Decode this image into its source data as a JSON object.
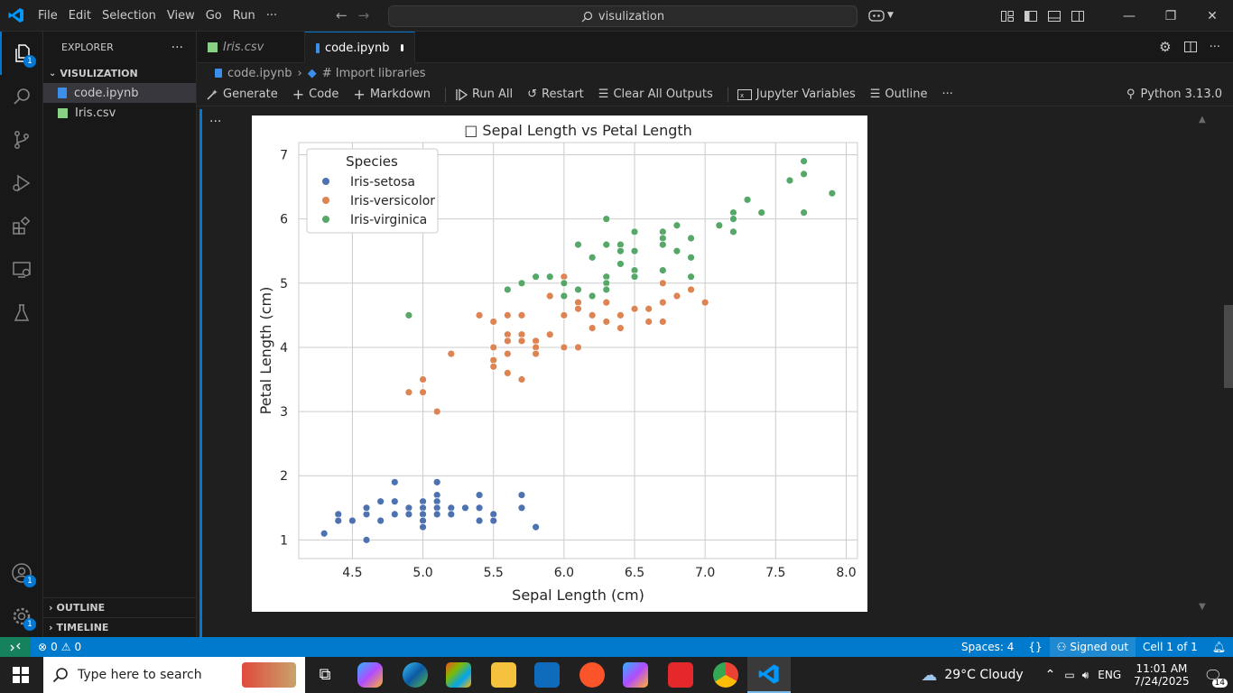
{
  "titlebar": {
    "menu": [
      "File",
      "Edit",
      "Selection",
      "View",
      "Go",
      "Run",
      "···"
    ],
    "search": "visulization"
  },
  "activity": {
    "explorer_badge": "1",
    "accounts_badge": "1",
    "settings_badge": "1"
  },
  "sidebar": {
    "header": "EXPLORER",
    "more": "···",
    "folder": "VISULIZATION",
    "files": [
      {
        "name": "code.ipynb",
        "icon": "notebook-icon"
      },
      {
        "name": "Iris.csv",
        "icon": "csv-icon"
      }
    ],
    "outline": "OUTLINE",
    "timeline": "TIMELINE"
  },
  "tabs": [
    {
      "label": "Iris.csv",
      "active": false
    },
    {
      "label": "code.ipynb",
      "active": true
    }
  ],
  "breadcrumb": {
    "file": "code.ipynb",
    "section": "# Import libraries"
  },
  "toolbar": {
    "generate": "Generate",
    "code": "Code",
    "markdown": "Markdown",
    "run_all": "Run All",
    "restart": "Restart",
    "clear": "Clear All Outputs",
    "variables": "Jupyter Variables",
    "outline": "Outline",
    "more": "···",
    "kernel": "Python 3.13.0"
  },
  "cell": {
    "more": "···"
  },
  "chart_data": {
    "type": "scatter",
    "title": "□ Sepal Length vs Petal Length",
    "xlabel": "Sepal Length (cm)",
    "ylabel": "Petal Length (cm)",
    "xlim": [
      4.12,
      8.08
    ],
    "ylim": [
      0.71,
      7.19
    ],
    "xticks": [
      "4.5",
      "5.0",
      "5.5",
      "6.0",
      "6.5",
      "7.0",
      "7.5",
      "8.0"
    ],
    "yticks": [
      "1",
      "2",
      "3",
      "4",
      "5",
      "6",
      "7"
    ],
    "grid": true,
    "legend": {
      "title": "Species",
      "placement": "top-left"
    },
    "series": [
      {
        "name": "Iris-setosa",
        "color": "#4c72b0",
        "points": [
          [
            4.3,
            1.1
          ],
          [
            4.4,
            1.4
          ],
          [
            4.4,
            1.3
          ],
          [
            4.5,
            1.3
          ],
          [
            4.6,
            1.0
          ],
          [
            4.6,
            1.4
          ],
          [
            4.6,
            1.5
          ],
          [
            4.7,
            1.6
          ],
          [
            4.7,
            1.3
          ],
          [
            4.8,
            1.9
          ],
          [
            4.8,
            1.6
          ],
          [
            4.8,
            1.4
          ],
          [
            4.9,
            1.5
          ],
          [
            4.9,
            1.4
          ],
          [
            5.0,
            1.6
          ],
          [
            5.0,
            1.5
          ],
          [
            5.0,
            1.4
          ],
          [
            5.0,
            1.3
          ],
          [
            5.0,
            1.2
          ],
          [
            5.1,
            1.9
          ],
          [
            5.1,
            1.7
          ],
          [
            5.1,
            1.6
          ],
          [
            5.1,
            1.5
          ],
          [
            5.1,
            1.4
          ],
          [
            5.2,
            1.5
          ],
          [
            5.2,
            1.4
          ],
          [
            5.3,
            1.5
          ],
          [
            5.4,
            1.7
          ],
          [
            5.4,
            1.5
          ],
          [
            5.4,
            1.3
          ],
          [
            5.5,
            1.4
          ],
          [
            5.5,
            1.3
          ],
          [
            5.7,
            1.7
          ],
          [
            5.7,
            1.5
          ],
          [
            5.8,
            1.2
          ]
        ]
      },
      {
        "name": "Iris-versicolor",
        "color": "#dd8452",
        "points": [
          [
            4.9,
            3.3
          ],
          [
            5.0,
            3.5
          ],
          [
            5.0,
            3.3
          ],
          [
            5.1,
            3.0
          ],
          [
            5.2,
            3.9
          ],
          [
            5.4,
            4.5
          ],
          [
            5.5,
            4.4
          ],
          [
            5.5,
            4.0
          ],
          [
            5.5,
            3.8
          ],
          [
            5.5,
            3.7
          ],
          [
            5.6,
            4.5
          ],
          [
            5.6,
            4.2
          ],
          [
            5.6,
            4.1
          ],
          [
            5.6,
            3.9
          ],
          [
            5.6,
            3.6
          ],
          [
            5.7,
            4.5
          ],
          [
            5.7,
            4.2
          ],
          [
            5.7,
            4.1
          ],
          [
            5.7,
            3.5
          ],
          [
            5.8,
            4.1
          ],
          [
            5.8,
            4.0
          ],
          [
            5.8,
            3.9
          ],
          [
            5.9,
            4.8
          ],
          [
            5.9,
            4.2
          ],
          [
            6.0,
            5.1
          ],
          [
            6.0,
            4.5
          ],
          [
            6.0,
            4.0
          ],
          [
            6.1,
            4.7
          ],
          [
            6.1,
            4.6
          ],
          [
            6.1,
            4.0
          ],
          [
            6.2,
            4.5
          ],
          [
            6.2,
            4.3
          ],
          [
            6.3,
            4.9
          ],
          [
            6.3,
            4.7
          ],
          [
            6.3,
            4.4
          ],
          [
            6.4,
            4.5
          ],
          [
            6.4,
            4.3
          ],
          [
            6.5,
            4.6
          ],
          [
            6.6,
            4.6
          ],
          [
            6.6,
            4.4
          ],
          [
            6.7,
            5.0
          ],
          [
            6.7,
            4.7
          ],
          [
            6.7,
            4.4
          ],
          [
            6.8,
            4.8
          ],
          [
            6.9,
            4.9
          ],
          [
            7.0,
            4.7
          ]
        ]
      },
      {
        "name": "Iris-virginica",
        "color": "#55a868",
        "points": [
          [
            4.9,
            4.5
          ],
          [
            5.6,
            4.9
          ],
          [
            5.7,
            5.0
          ],
          [
            5.8,
            5.1
          ],
          [
            5.9,
            5.1
          ],
          [
            6.0,
            5.0
          ],
          [
            6.0,
            4.8
          ],
          [
            6.1,
            5.6
          ],
          [
            6.1,
            4.9
          ],
          [
            6.2,
            5.4
          ],
          [
            6.2,
            4.8
          ],
          [
            6.3,
            6.0
          ],
          [
            6.3,
            5.6
          ],
          [
            6.3,
            5.1
          ],
          [
            6.3,
            5.0
          ],
          [
            6.3,
            4.9
          ],
          [
            6.4,
            5.6
          ],
          [
            6.4,
            5.5
          ],
          [
            6.4,
            5.3
          ],
          [
            6.5,
            5.8
          ],
          [
            6.5,
            5.5
          ],
          [
            6.5,
            5.2
          ],
          [
            6.5,
            5.1
          ],
          [
            6.7,
            5.8
          ],
          [
            6.7,
            5.7
          ],
          [
            6.7,
            5.6
          ],
          [
            6.7,
            5.2
          ],
          [
            6.8,
            5.9
          ],
          [
            6.8,
            5.5
          ],
          [
            6.9,
            5.7
          ],
          [
            6.9,
            5.4
          ],
          [
            6.9,
            5.1
          ],
          [
            7.1,
            5.9
          ],
          [
            7.2,
            6.1
          ],
          [
            7.2,
            6.0
          ],
          [
            7.2,
            5.8
          ],
          [
            7.3,
            6.3
          ],
          [
            7.4,
            6.1
          ],
          [
            7.6,
            6.6
          ],
          [
            7.7,
            6.9
          ],
          [
            7.7,
            6.7
          ],
          [
            7.7,
            6.1
          ],
          [
            7.9,
            6.4
          ]
        ]
      }
    ]
  },
  "status": {
    "errors": "0",
    "warnings": "0",
    "spaces": "Spaces: 4",
    "braces": "{}",
    "account": "Signed out",
    "cell": "Cell 1 of 1"
  },
  "taskbar": {
    "search": "Type here to search",
    "weather": "29°C  Cloudy",
    "lang": "ENG",
    "time": "11:01 AM",
    "date": "7/24/2025",
    "notif": "14"
  }
}
